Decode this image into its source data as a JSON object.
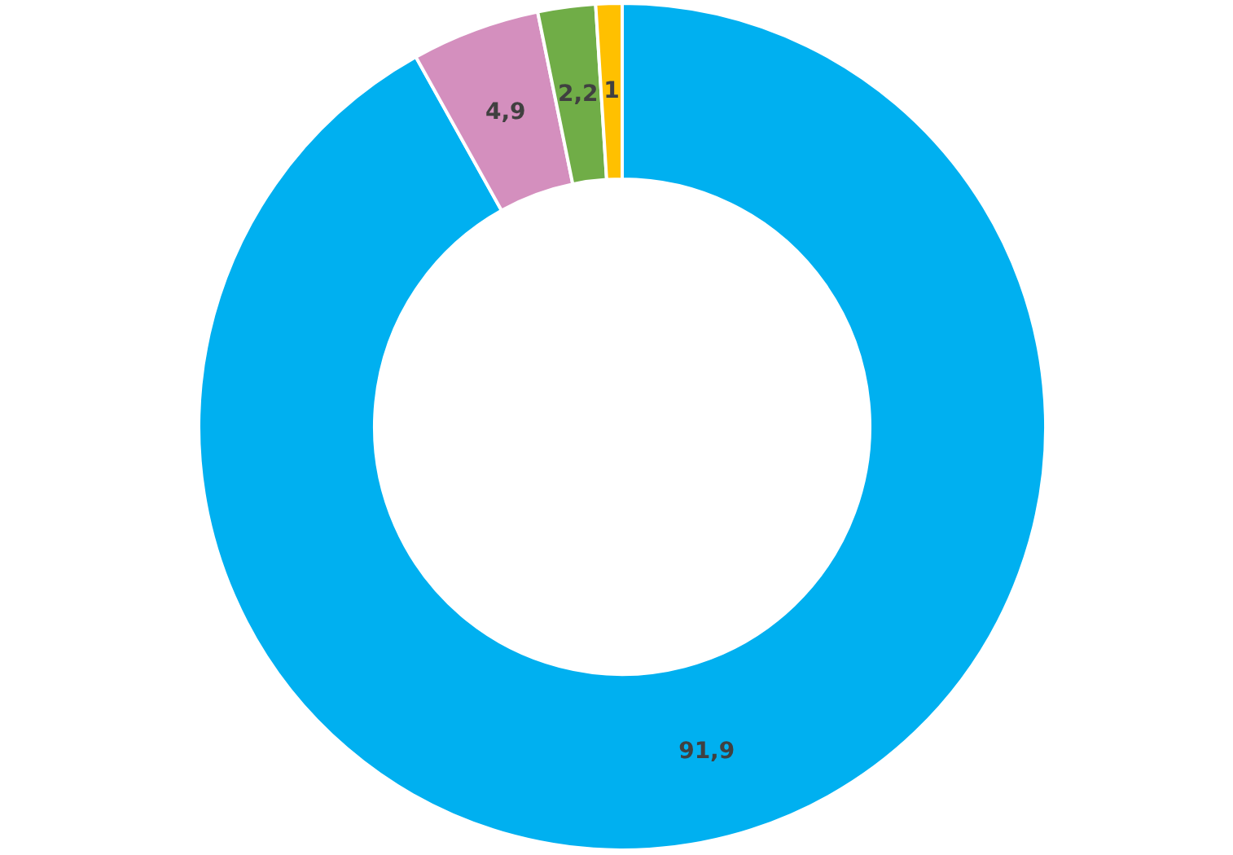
{
  "chart_data": {
    "type": "donut",
    "categories": [
      null,
      null,
      null,
      null
    ],
    "values": [
      91.9,
      4.9,
      2.2,
      1
    ],
    "colors": [
      "#00b0f0",
      "#d48fbe",
      "#70ad47",
      "#ffc000"
    ],
    "value_labels": [
      "91,9",
      "4,9",
      "2,2",
      "1"
    ]
  }
}
